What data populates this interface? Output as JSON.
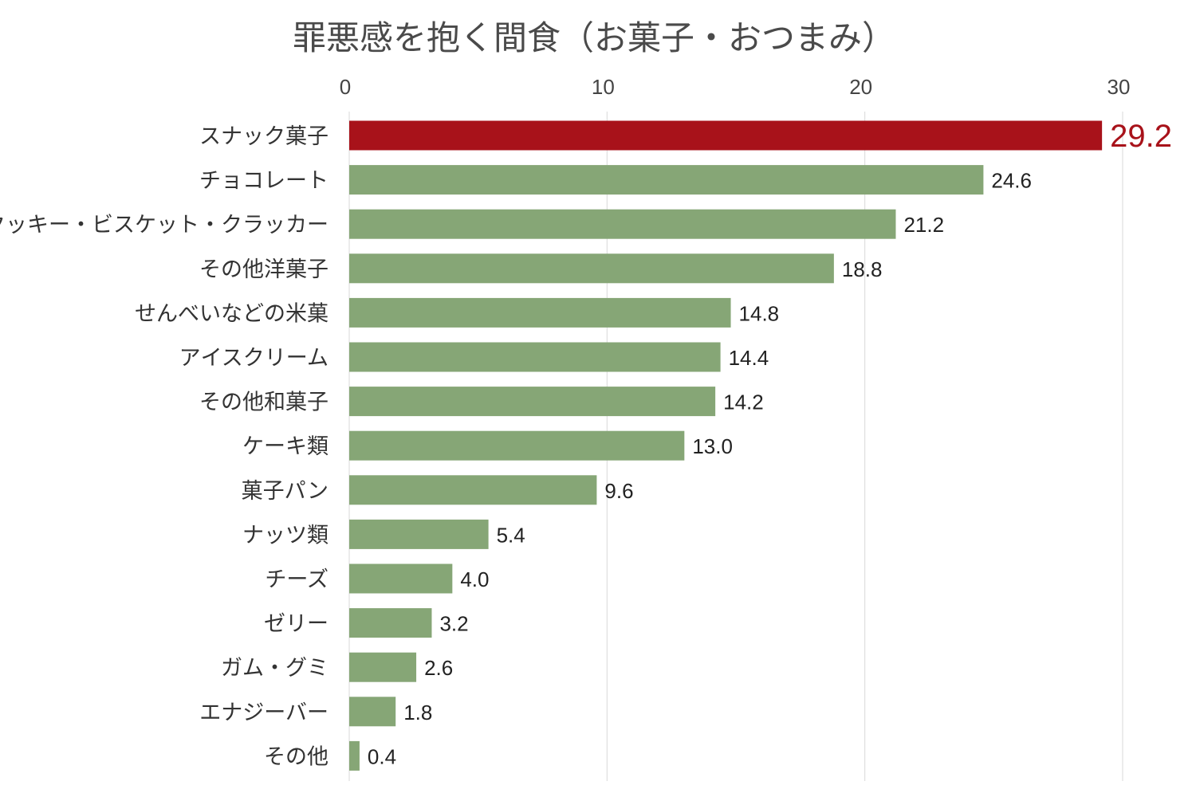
{
  "chart_data": {
    "type": "bar",
    "orientation": "horizontal",
    "title": "罪悪感を抱く間食（お菓子・おつまみ）",
    "categories": [
      "スナック菓子",
      "チョコレート",
      "クッキー・ビスケット・クラッカー",
      "その他洋菓子",
      "せんべいなどの米菓",
      "アイスクリーム",
      "その他和菓子",
      "ケーキ類",
      "菓子パン",
      "ナッツ類",
      "チーズ",
      "ゼリー",
      "ガム・グミ",
      "エナジーバー",
      "その他"
    ],
    "values": [
      29.2,
      24.6,
      21.2,
      18.8,
      14.8,
      14.4,
      14.2,
      13.0,
      9.6,
      5.4,
      4.0,
      3.2,
      2.6,
      1.8,
      0.4
    ],
    "value_labels": [
      "29.2",
      "24.6",
      "21.2",
      "18.8",
      "14.8",
      "14.4",
      "14.2",
      "13.0",
      "9.6",
      "5.4",
      "4.0",
      "3.2",
      "2.6",
      "1.8",
      "0.4"
    ],
    "xlim": [
      0,
      30
    ],
    "x_ticks": [
      0,
      10,
      20,
      30
    ],
    "x_axis_position": "top",
    "grid": true,
    "legend": "none",
    "highlight_index": 0,
    "colors": {
      "bar": "#86a676",
      "highlight": "#a8121a",
      "grid": "#d9d9d9",
      "title": "#4a4a4a"
    }
  }
}
